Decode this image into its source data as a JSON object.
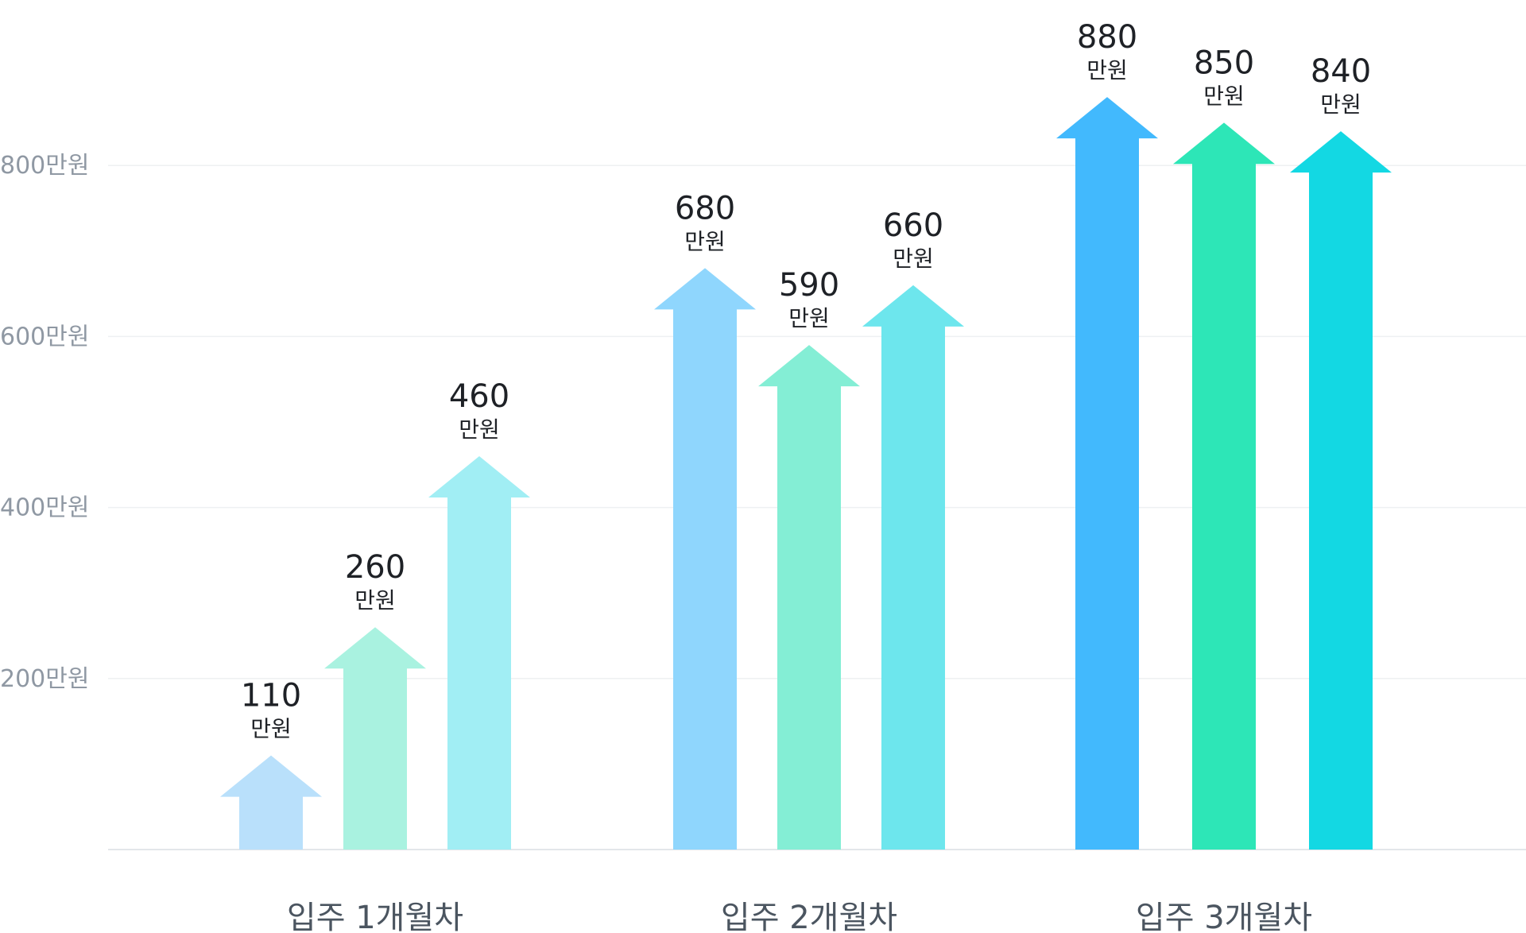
{
  "chart_data": {
    "type": "bar",
    "title": "",
    "xlabel": "",
    "ylabel": "",
    "unit": "만원",
    "ylim": [
      0,
      900
    ],
    "yticks": [
      200,
      400,
      600,
      800
    ],
    "ytick_labels": [
      "200만원",
      "400만원",
      "600만원",
      "800만원"
    ],
    "grid": true,
    "categories": [
      "입주 1개월차",
      "입주 2개월차",
      "입주 3개월차"
    ],
    "groups": [
      {
        "label": "입주 1개월차",
        "bars": [
          {
            "value": 110,
            "num": "110",
            "unit": "만원",
            "color": "#b9e0fb"
          },
          {
            "value": 260,
            "num": "260",
            "unit": "만원",
            "color": "#a9f2e0"
          },
          {
            "value": 460,
            "num": "460",
            "unit": "만원",
            "color": "#a1eef4"
          }
        ]
      },
      {
        "label": "입주 2개월차",
        "bars": [
          {
            "value": 680,
            "num": "680",
            "unit": "만원",
            "color": "#8fd6fd"
          },
          {
            "value": 590,
            "num": "590",
            "unit": "만원",
            "color": "#84eed5"
          },
          {
            "value": 660,
            "num": "660",
            "unit": "만원",
            "color": "#6de6ed"
          }
        ]
      },
      {
        "label": "입주 3개월차",
        "bars": [
          {
            "value": 880,
            "num": "880",
            "unit": "만원",
            "color": "#42b9fd"
          },
          {
            "value": 850,
            "num": "850",
            "unit": "만원",
            "color": "#2de6b7"
          },
          {
            "value": 840,
            "num": "840",
            "unit": "만원",
            "color": "#13d8e3"
          }
        ]
      }
    ]
  }
}
